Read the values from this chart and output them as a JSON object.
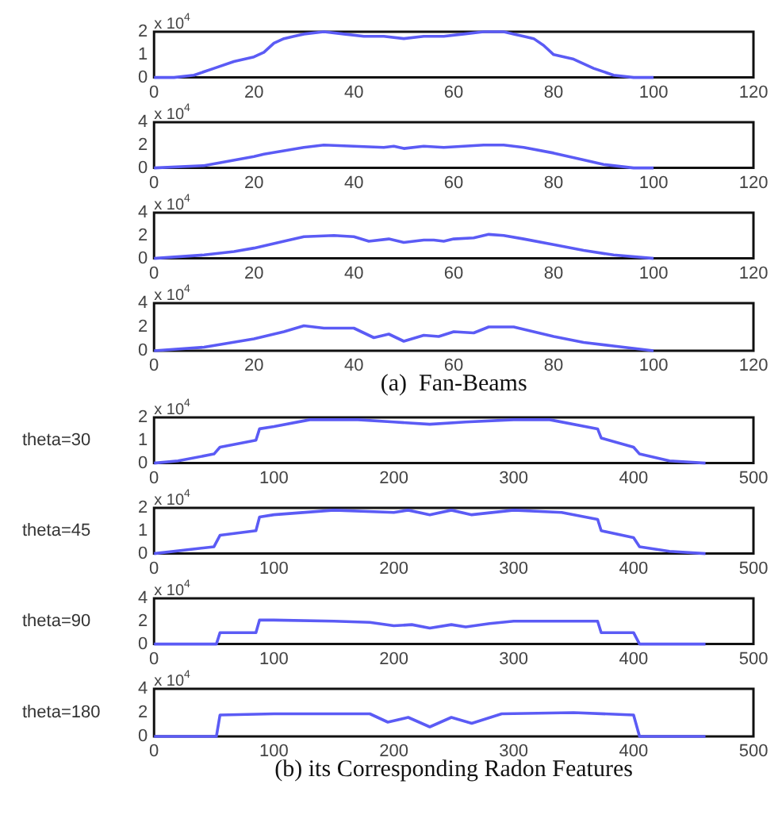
{
  "chart_data": [
    {
      "type": "line",
      "color": "#5b5bf5",
      "marker": "none",
      "annotations": [
        "x 10$^{4}$"
      ],
      "xlim": [
        0,
        120
      ],
      "xticks": [
        0,
        20,
        40,
        60,
        80,
        100,
        120
      ],
      "ylim": [
        0,
        2
      ],
      "yticks": [
        0,
        1,
        2
      ],
      "x": [
        0,
        4,
        8,
        12,
        16,
        20,
        22,
        24,
        26,
        28,
        30,
        34,
        38,
        42,
        46,
        50,
        54,
        58,
        62,
        66,
        70,
        72,
        74,
        76,
        78,
        80,
        84,
        88,
        92,
        96,
        100
      ],
      "values": [
        0,
        0,
        0.1,
        0.4,
        0.7,
        0.9,
        1.1,
        1.5,
        1.7,
        1.8,
        1.9,
        2,
        1.9,
        1.8,
        1.8,
        1.7,
        1.8,
        1.8,
        1.9,
        2,
        2,
        1.9,
        1.8,
        1.7,
        1.4,
        1,
        0.8,
        0.4,
        0.1,
        0,
        0
      ]
    },
    {
      "type": "line",
      "color": "#5b5bf5",
      "marker": "none",
      "annotations": [
        "x 10$^{4}$"
      ],
      "xlim": [
        0,
        120
      ],
      "xticks": [
        0,
        20,
        40,
        60,
        80,
        100,
        120
      ],
      "ylim": [
        0,
        4
      ],
      "yticks": [
        0,
        2,
        4
      ],
      "x": [
        0,
        10,
        20,
        22,
        26,
        30,
        34,
        40,
        46,
        48,
        50,
        54,
        58,
        62,
        66,
        70,
        74,
        80,
        86,
        90,
        96,
        100
      ],
      "values": [
        0,
        0.2,
        1,
        1.2,
        1.5,
        1.8,
        2,
        1.9,
        1.8,
        1.9,
        1.7,
        1.9,
        1.8,
        1.9,
        2,
        2,
        1.8,
        1.3,
        0.7,
        0.3,
        0,
        0
      ]
    },
    {
      "type": "line",
      "color": "#5b5bf5",
      "marker": "none",
      "annotations": [
        "x 10$^{4}$"
      ],
      "xlim": [
        0,
        120
      ],
      "xticks": [
        0,
        20,
        40,
        60,
        80,
        100,
        120
      ],
      "ylim": [
        0,
        4
      ],
      "yticks": [
        0,
        2,
        4
      ],
      "x": [
        0,
        10,
        16,
        20,
        26,
        30,
        36,
        40,
        43,
        47,
        50,
        54,
        56,
        58,
        60,
        64,
        67,
        70,
        74,
        80,
        86,
        92,
        100
      ],
      "values": [
        0,
        0.3,
        0.6,
        0.9,
        1.5,
        1.9,
        2,
        1.9,
        1.5,
        1.7,
        1.4,
        1.6,
        1.6,
        1.5,
        1.7,
        1.8,
        2.1,
        2,
        1.7,
        1.2,
        0.7,
        0.3,
        0
      ]
    },
    {
      "type": "line",
      "color": "#5b5bf5",
      "marker": "none",
      "annotations": [
        "x 10$^{4}$"
      ],
      "xlabel": "(a)  Fan-Beams",
      "xlim": [
        0,
        120
      ],
      "xticks": [
        0,
        20,
        40,
        60,
        80,
        100,
        120
      ],
      "ylim": [
        0,
        4
      ],
      "yticks": [
        0,
        2,
        4
      ],
      "x": [
        0,
        10,
        20,
        26,
        30,
        34,
        38,
        40,
        44,
        47,
        50,
        54,
        57,
        60,
        64,
        67,
        72,
        76,
        80,
        86,
        92,
        100
      ],
      "values": [
        0,
        0.3,
        1,
        1.6,
        2.1,
        1.9,
        1.9,
        1.9,
        1.1,
        1.4,
        0.8,
        1.3,
        1.2,
        1.6,
        1.5,
        2,
        2,
        1.6,
        1.2,
        0.7,
        0.4,
        0
      ]
    },
    {
      "type": "line",
      "color": "#5b5bf5",
      "marker": "none",
      "annotations": [
        "x 10$^{4}$"
      ],
      "ylabel": "theta=30",
      "xlim": [
        0,
        500
      ],
      "xticks": [
        0,
        100,
        200,
        300,
        400,
        500
      ],
      "ylim": [
        0,
        2
      ],
      "yticks": [
        0,
        1,
        2
      ],
      "x": [
        0,
        20,
        50,
        55,
        85,
        88,
        100,
        130,
        170,
        200,
        230,
        260,
        300,
        330,
        370,
        373,
        400,
        405,
        430,
        460
      ],
      "values": [
        0,
        0.1,
        0.4,
        0.7,
        1,
        1.5,
        1.6,
        1.9,
        1.9,
        1.8,
        1.7,
        1.8,
        1.9,
        1.9,
        1.5,
        1.1,
        0.7,
        0.4,
        0.1,
        0
      ]
    },
    {
      "type": "line",
      "color": "#5b5bf5",
      "marker": "none",
      "annotations": [
        "x 10$^{4}$"
      ],
      "ylabel": "theta=45",
      "xlim": [
        0,
        500
      ],
      "xticks": [
        0,
        100,
        200,
        300,
        400,
        500
      ],
      "ylim": [
        0,
        2
      ],
      "yticks": [
        0,
        1,
        2
      ],
      "x": [
        0,
        50,
        55,
        85,
        88,
        100,
        150,
        200,
        212,
        230,
        248,
        265,
        300,
        340,
        370,
        373,
        400,
        405,
        430,
        460
      ],
      "values": [
        0,
        0.3,
        0.8,
        1,
        1.6,
        1.7,
        1.9,
        1.8,
        1.9,
        1.7,
        1.9,
        1.7,
        1.9,
        1.8,
        1.5,
        1,
        0.7,
        0.3,
        0.1,
        0
      ]
    },
    {
      "type": "line",
      "color": "#5b5bf5",
      "marker": "none",
      "annotations": [
        "x 10$^{4}$"
      ],
      "ylabel": "theta=90",
      "xlim": [
        0,
        500
      ],
      "xticks": [
        0,
        100,
        200,
        300,
        400,
        500
      ],
      "ylim": [
        0,
        4
      ],
      "yticks": [
        0,
        2,
        4
      ],
      "x": [
        0,
        52,
        55,
        85,
        88,
        100,
        150,
        180,
        200,
        215,
        230,
        248,
        260,
        280,
        300,
        370,
        373,
        400,
        405,
        460
      ],
      "values": [
        0,
        0,
        1,
        1,
        2.1,
        2.1,
        2,
        1.9,
        1.6,
        1.7,
        1.4,
        1.7,
        1.5,
        1.8,
        2,
        2,
        1,
        1,
        0,
        0
      ]
    },
    {
      "type": "line",
      "color": "#5b5bf5",
      "marker": "none",
      "annotations": [
        "x 10$^{4}$"
      ],
      "ylabel": "theta=180",
      "xlabel": "(b) its Corresponding Radon Features",
      "xlim": [
        0,
        500
      ],
      "xticks": [
        0,
        100,
        200,
        300,
        400,
        500
      ],
      "ylim": [
        0,
        4
      ],
      "yticks": [
        0,
        2,
        4
      ],
      "x": [
        0,
        52,
        55,
        100,
        150,
        180,
        195,
        212,
        230,
        248,
        265,
        290,
        350,
        400,
        405,
        460
      ],
      "values": [
        0,
        0,
        1.8,
        1.9,
        1.9,
        1.9,
        1.2,
        1.6,
        0.8,
        1.6,
        1.1,
        1.9,
        2,
        1.8,
        0,
        0
      ]
    }
  ]
}
